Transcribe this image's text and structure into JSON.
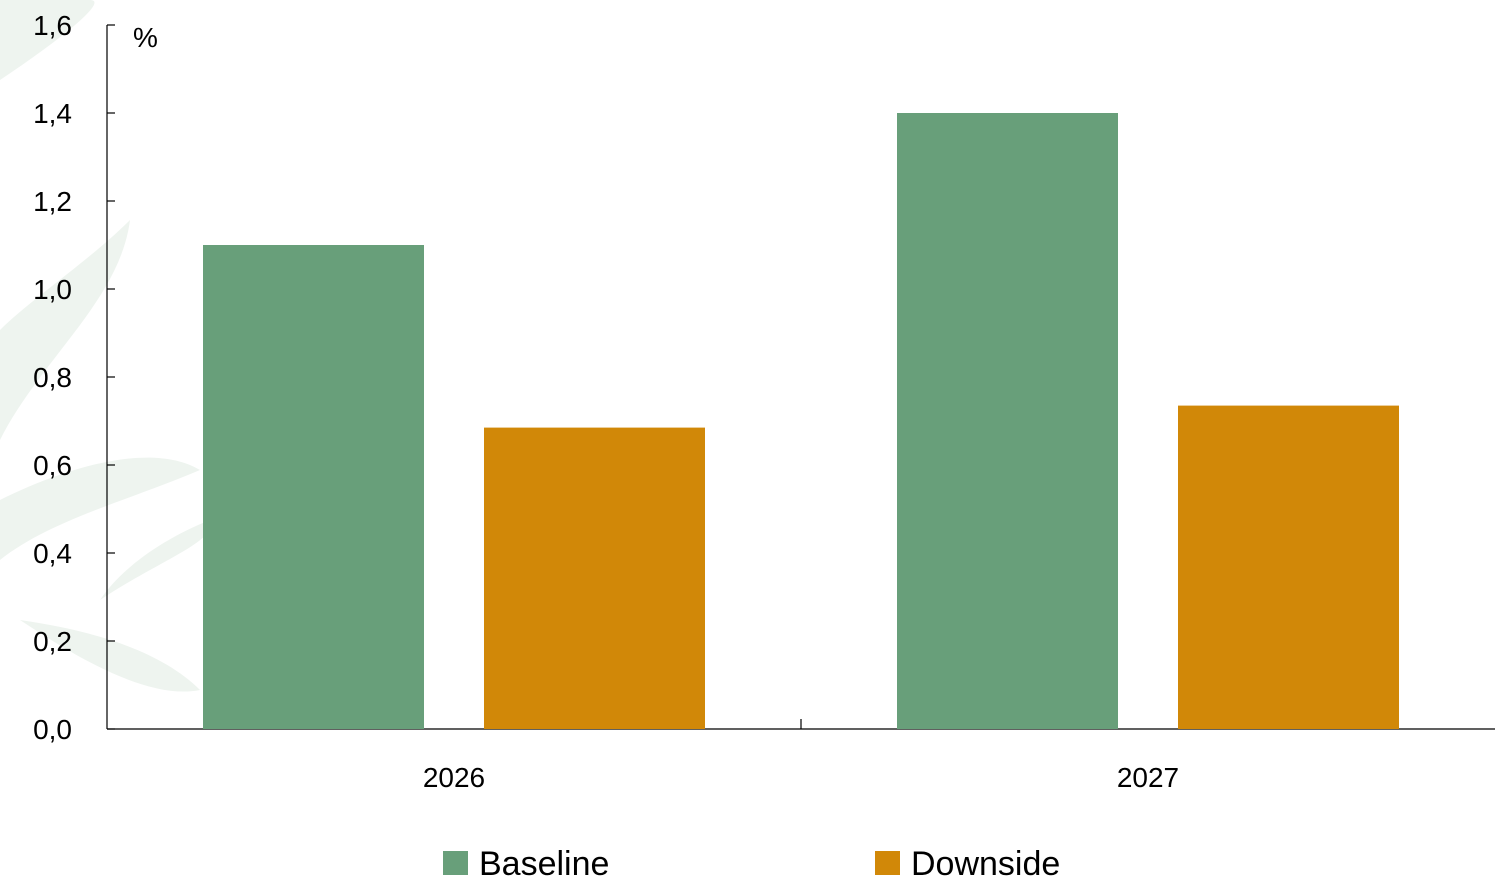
{
  "chart_data": {
    "type": "bar",
    "title": "",
    "xlabel": "",
    "ylabel": "%",
    "categories": [
      "2026",
      "2027"
    ],
    "ylim": [
      0,
      1.6
    ],
    "yticks": [
      "0,0",
      "0,2",
      "0,4",
      "0,6",
      "0,8",
      "1,0",
      "1,2",
      "1,4",
      "1,6"
    ],
    "grid": false,
    "legend_position": "bottom",
    "series": [
      {
        "name": "Baseline",
        "color": "#689f7a",
        "values": [
          1.1,
          1.4
        ]
      },
      {
        "name": "Downside",
        "color": "#d18808",
        "values": [
          0.685,
          0.735
        ]
      }
    ]
  }
}
